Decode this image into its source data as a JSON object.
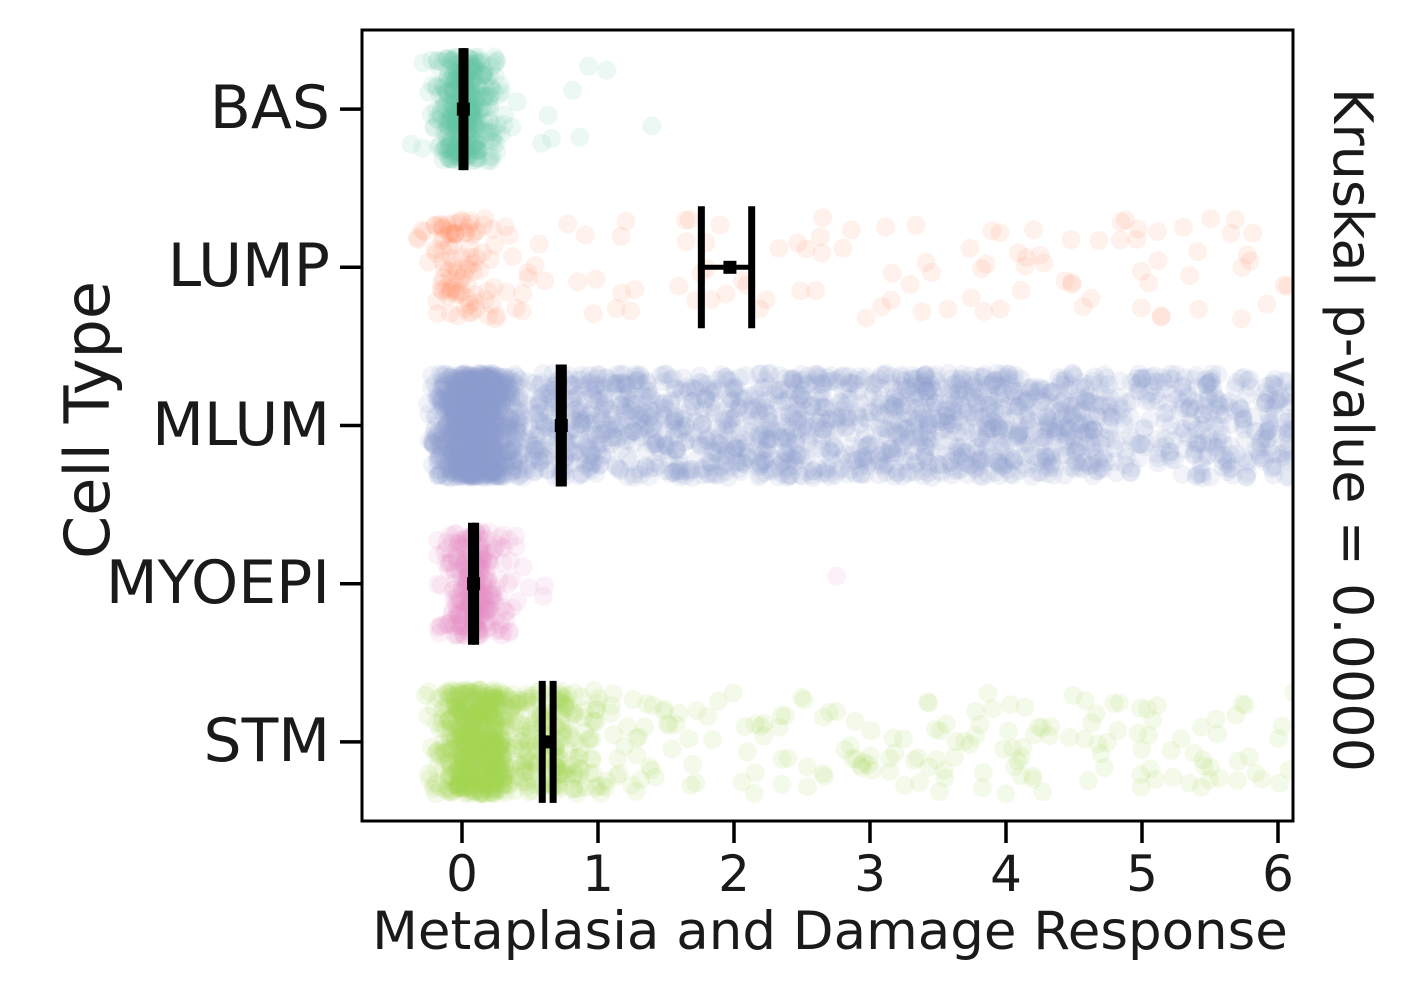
{
  "figure": {
    "background": "#ffffff",
    "text_color": "#1a1a1a",
    "spine_color": "#000000"
  },
  "chart_data": {
    "type": "scatter",
    "variant": "horizontal-stripplot-with-errorbars",
    "title": "",
    "xlabel": "Metaplasia and Damage Response",
    "ylabel": "Cell Type",
    "annotation": "Kruskal p-value = 0.0000",
    "categories": [
      "BAS",
      "LUMP",
      "MLUM",
      "MYOEPI",
      "STM"
    ],
    "x_ticks": [
      0,
      1,
      2,
      3,
      4,
      5,
      6
    ],
    "xlim": [
      -0.74,
      6.11
    ],
    "grid": false,
    "legend": "none",
    "point_alpha": 0.12,
    "point_radius_px": 9.5,
    "errorbar_color": "#000000",
    "series": [
      {
        "name": "BAS",
        "color": "#66c2a5",
        "mean": 0.01,
        "ci": [
          0.0,
          0.022
        ],
        "x_extent": [
          -0.42,
          1.62
        ],
        "components": [
          {
            "dist": "normal",
            "n": 330,
            "mu": 0.02,
            "sigma": 0.12,
            "clip": [
              -0.42,
              0.5
            ]
          },
          {
            "dist": "normal",
            "n": 70,
            "mu": 0.03,
            "sigma": 0.05,
            "clip": [
              -0.1,
              0.16
            ]
          },
          {
            "dist": "uniform",
            "n": 9,
            "lo": 0.35,
            "hi": 1.62
          }
        ]
      },
      {
        "name": "LUMP",
        "color": "#fc8d62",
        "mean": 1.97,
        "ci": [
          1.76,
          2.13
        ],
        "x_extent": [
          -0.36,
          6.12
        ],
        "components": [
          {
            "dist": "normal",
            "n": 95,
            "mu": -0.05,
            "sigma": 0.13,
            "clip": [
              -0.36,
              0.3
            ]
          },
          {
            "dist": "uniform",
            "n": 110,
            "lo": 0.15,
            "hi": 6.12
          }
        ]
      },
      {
        "name": "MLUM",
        "color": "#8da0cb",
        "mean": 0.73,
        "ci": [
          0.715,
          0.745
        ],
        "x_extent": [
          -0.43,
          6.12
        ],
        "components": [
          {
            "dist": "normal",
            "n": 1000,
            "mu": 0.1,
            "sigma": 0.13,
            "clip": [
              -0.43,
              0.45
            ]
          },
          {
            "dist": "uniform",
            "n": 1450,
            "lo": -0.25,
            "hi": 6.12
          },
          {
            "dist": "uniform",
            "n": 480,
            "lo": 0.3,
            "hi": 4.7
          }
        ]
      },
      {
        "name": "MYOEPI",
        "color": "#e78ac3",
        "mean": 0.085,
        "ci": [
          0.07,
          0.1
        ],
        "x_extent": [
          -0.19,
          2.75
        ],
        "components": [
          {
            "dist": "normal",
            "n": 270,
            "mu": 0.08,
            "sigma": 0.11,
            "clip": [
              -0.19,
              0.55
            ]
          },
          {
            "dist": "normal",
            "n": 18,
            "mu": 0.38,
            "sigma": 0.14,
            "clip": [
              0.12,
              0.72
            ]
          },
          {
            "dist": "uniform",
            "n": 1,
            "lo": 2.74,
            "hi": 2.76
          }
        ]
      },
      {
        "name": "STM",
        "color": "#a6d854",
        "mean": 0.63,
        "ci": [
          0.59,
          0.67
        ],
        "x_extent": [
          -0.28,
          6.12
        ],
        "components": [
          {
            "dist": "normal",
            "n": 560,
            "mu": 0.1,
            "sigma": 0.14,
            "clip": [
              -0.28,
              0.5
            ]
          },
          {
            "dist": "normal",
            "n": 240,
            "mu": 0.55,
            "sigma": 0.3,
            "clip": [
              0.22,
              1.5
            ]
          },
          {
            "dist": "uniform",
            "n": 180,
            "lo": 0.5,
            "hi": 6.12
          }
        ]
      }
    ]
  }
}
